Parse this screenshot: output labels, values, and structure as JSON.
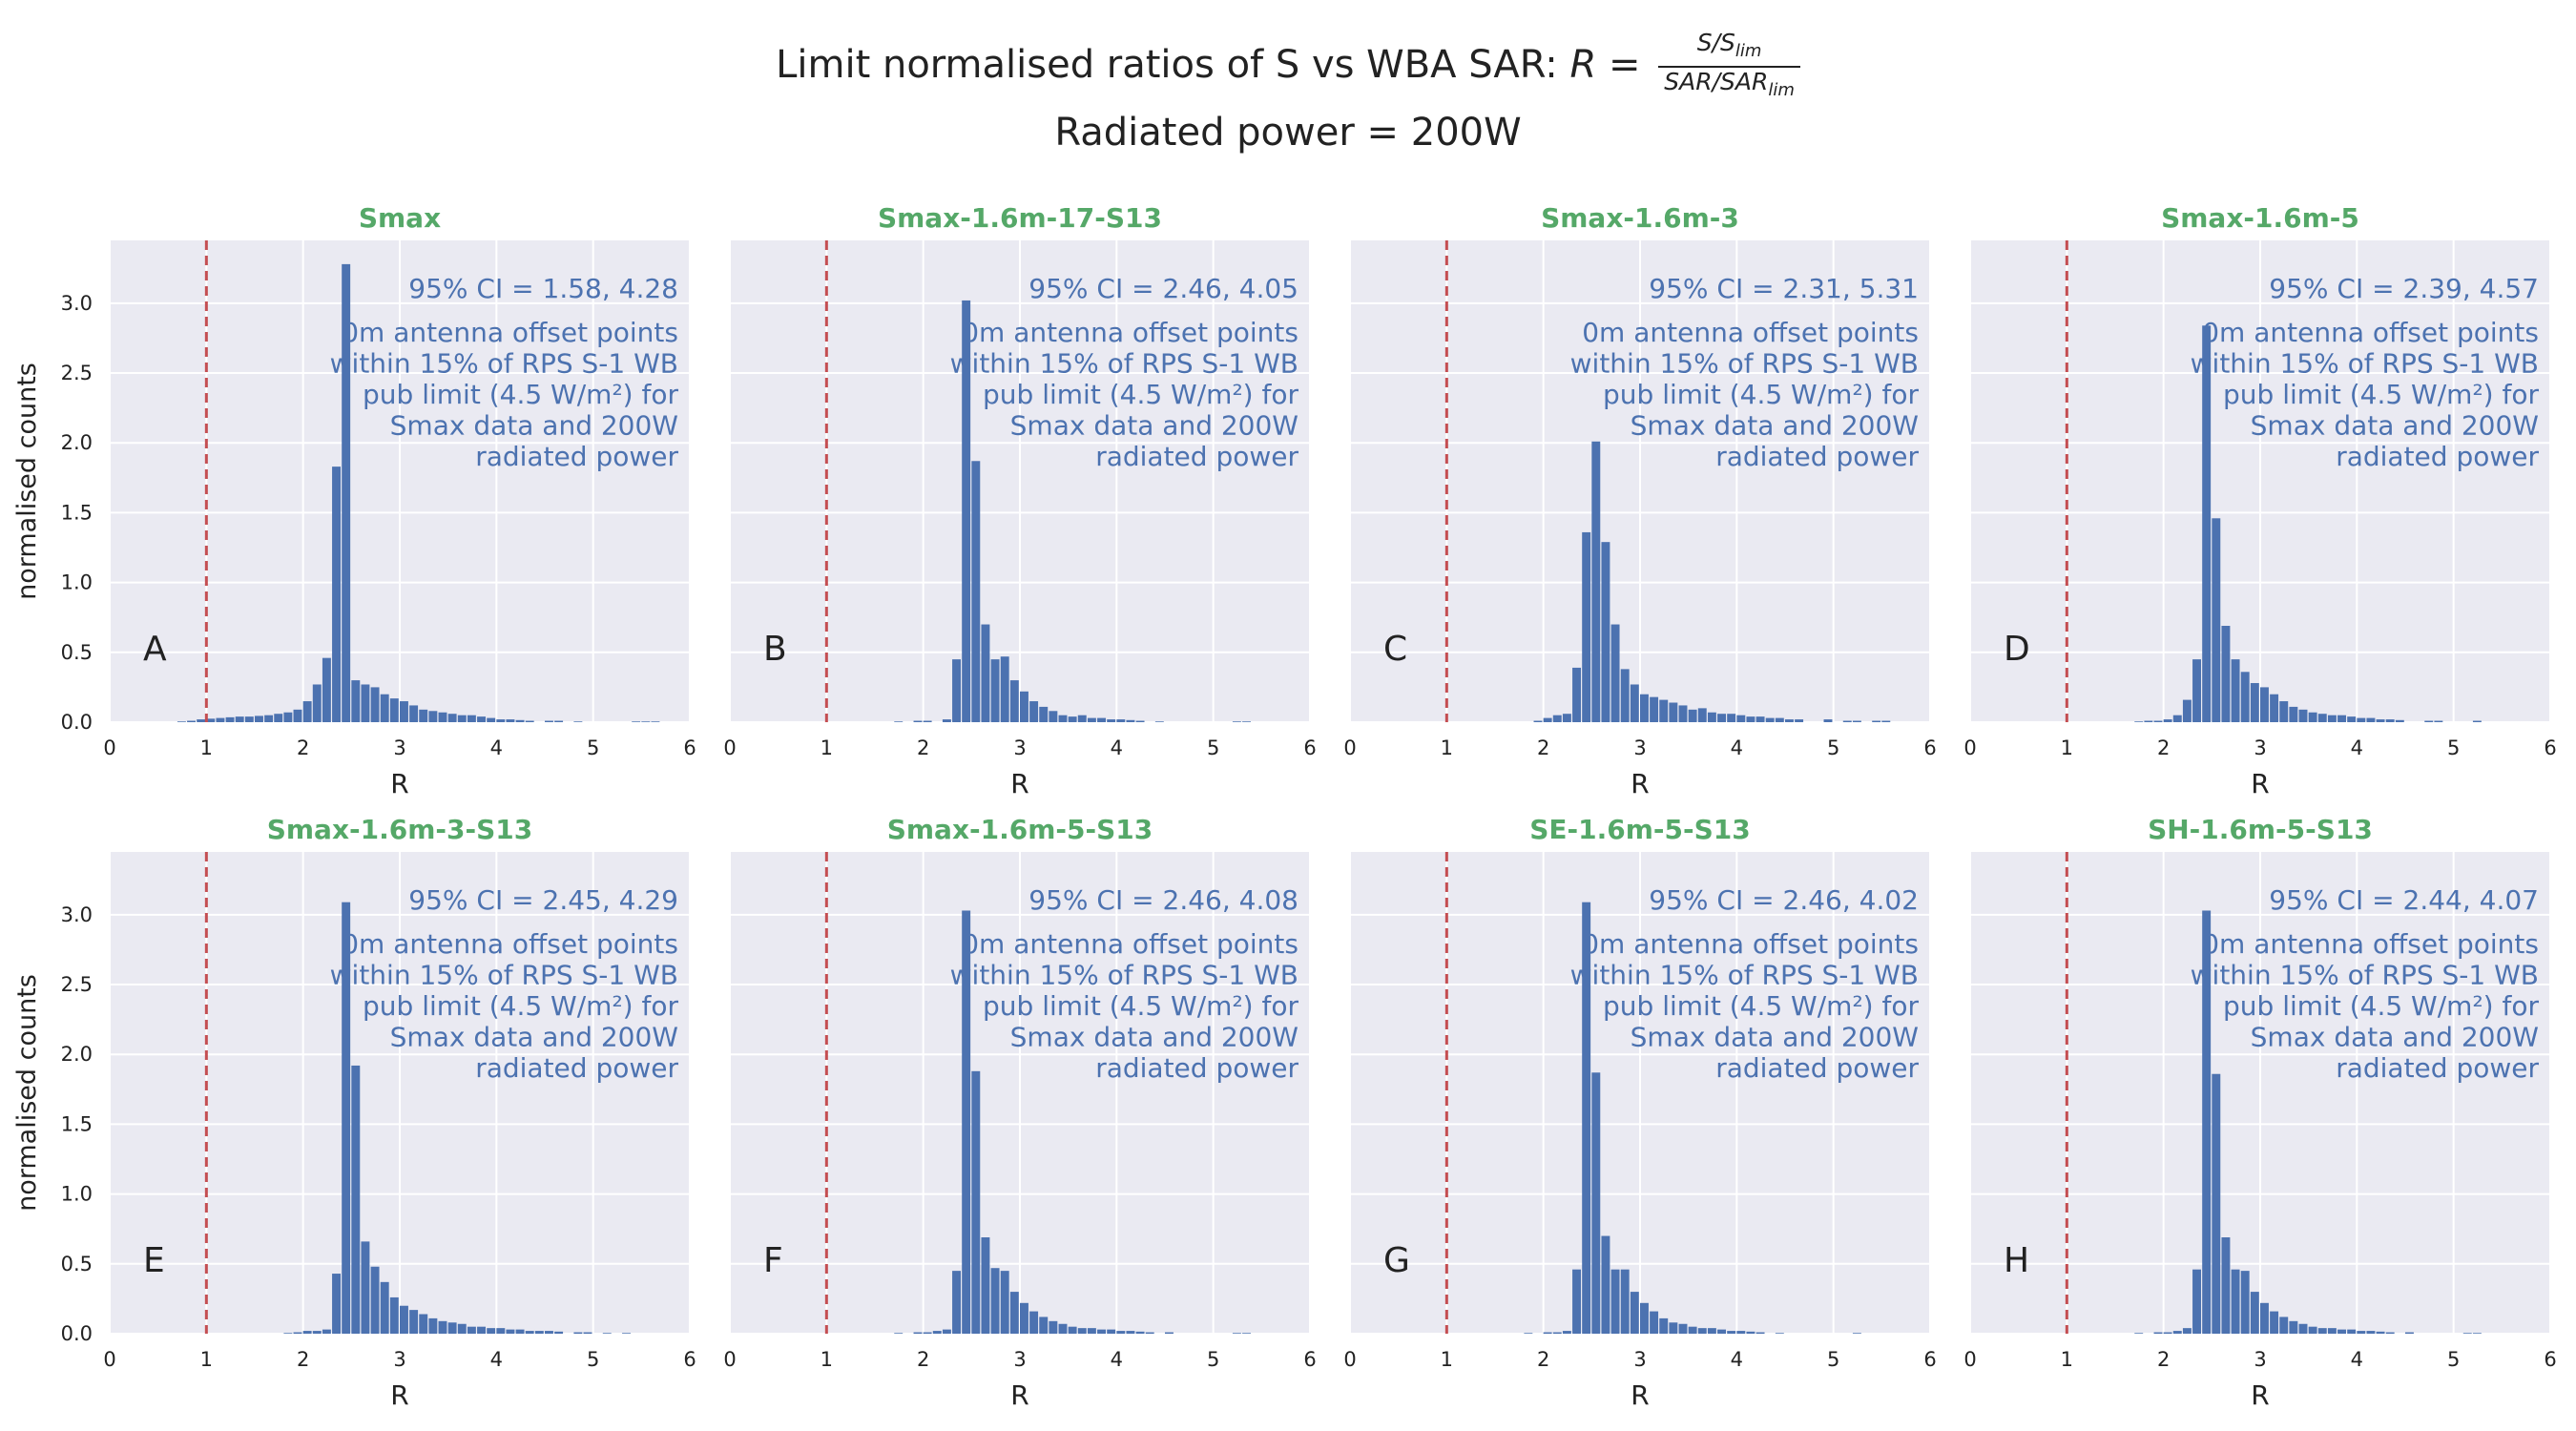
{
  "figure": {
    "title_prefix": "Limit normalised ratios of S vs WBA SAR:",
    "title_lhs": "R =",
    "title_frac_num": "S/S",
    "title_frac_num_sub": "lim",
    "title_frac_den": "SAR/SAR",
    "title_frac_den_sub": "lim",
    "subtitle": "Radiated power = 200W"
  },
  "colors": {
    "bar": "#4c72b0",
    "title_green": "#55a868",
    "annotation_blue": "#4c72b0",
    "limit_line": "#c44e52",
    "axes_bg": "#eaeaf2",
    "grid": "#ffffff"
  },
  "chart_data": [
    {
      "type": "bar",
      "panel_letter": "A",
      "title": "Smax",
      "xlabel": "R",
      "ylabel": "normalised counts",
      "xlim": [
        0,
        6
      ],
      "ylim": [
        0,
        3.45
      ],
      "xticks": [
        "0",
        "1",
        "2",
        "3",
        "4",
        "5",
        "6"
      ],
      "yticks": [
        "0.0",
        "0.5",
        "1.0",
        "1.5",
        "2.0",
        "2.5",
        "3.0"
      ],
      "bin_width": 0.1,
      "x_start": 0.7,
      "limit_line_x": 1.0,
      "values": [
        0.005,
        0.01,
        0.02,
        0.025,
        0.03,
        0.035,
        0.04,
        0.04,
        0.045,
        0.05,
        0.06,
        0.07,
        0.09,
        0.15,
        0.27,
        0.46,
        1.83,
        3.28,
        0.3,
        0.27,
        0.25,
        0.2,
        0.17,
        0.15,
        0.12,
        0.09,
        0.08,
        0.07,
        0.06,
        0.05,
        0.05,
        0.04,
        0.03,
        0.02,
        0.02,
        0.015,
        0.01,
        0,
        0.01,
        0.01,
        0,
        0.005,
        0,
        0,
        0,
        0,
        0,
        0.005,
        0.005,
        0.005
      ],
      "annotation_ci": "95% CI = 1.58, 4.28",
      "annotation_lines": [
        "0m antenna offset points",
        "within 15% of RPS S-1 WB",
        "pub limit (4.5 W/m²) for",
        "Smax data and 200W",
        "radiated power"
      ]
    },
    {
      "type": "bar",
      "panel_letter": "B",
      "title": "Smax-1.6m-17-S13",
      "xlabel": "R",
      "ylabel": "",
      "xlim": [
        0,
        6
      ],
      "ylim": [
        0,
        3.45
      ],
      "xticks": [
        "0",
        "1",
        "2",
        "3",
        "4",
        "5",
        "6"
      ],
      "yticks": [],
      "bin_width": 0.1,
      "x_start": 1.7,
      "limit_line_x": 1.0,
      "values": [
        0.005,
        0,
        0.01,
        0.01,
        0,
        0.02,
        0.45,
        3.02,
        1.87,
        0.7,
        0.45,
        0.47,
        0.3,
        0.22,
        0.15,
        0.11,
        0.08,
        0.05,
        0.04,
        0.05,
        0.03,
        0.03,
        0.02,
        0.02,
        0.015,
        0.01,
        0,
        0.005,
        0,
        0,
        0,
        0,
        0,
        0,
        0,
        0.005,
        0.005,
        0,
        0,
        0,
        0,
        0
      ],
      "annotation_ci": "95% CI = 2.46, 4.05",
      "annotation_lines": [
        "0m antenna offset points",
        "within 15% of RPS S-1 WB",
        "pub limit (4.5 W/m²) for",
        "Smax data and 200W",
        "radiated power"
      ]
    },
    {
      "type": "bar",
      "panel_letter": "C",
      "title": "Smax-1.6m-3",
      "xlabel": "R",
      "ylabel": "",
      "xlim": [
        0,
        6
      ],
      "ylim": [
        0,
        3.45
      ],
      "xticks": [
        "0",
        "1",
        "2",
        "3",
        "4",
        "5",
        "6"
      ],
      "yticks": [],
      "bin_width": 0.1,
      "x_start": 1.9,
      "limit_line_x": 1.0,
      "values": [
        0.01,
        0.03,
        0.05,
        0.06,
        0.39,
        1.36,
        2.01,
        1.29,
        0.7,
        0.38,
        0.27,
        0.2,
        0.18,
        0.16,
        0.14,
        0.12,
        0.09,
        0.1,
        0.07,
        0.06,
        0.06,
        0.05,
        0.04,
        0.04,
        0.03,
        0.03,
        0.02,
        0.02,
        0,
        0,
        0.02,
        0,
        0.01,
        0.01,
        0,
        0.01,
        0.01,
        0,
        0,
        0
      ],
      "annotation_ci": "95% CI = 2.31, 5.31",
      "annotation_lines": [
        "0m antenna offset points",
        "within 15% of RPS S-1 WB",
        "pub limit (4.5 W/m²) for",
        "Smax data and 200W",
        "radiated power"
      ]
    },
    {
      "type": "bar",
      "panel_letter": "D",
      "title": "Smax-1.6m-5",
      "xlabel": "R",
      "ylabel": "",
      "xlim": [
        0,
        6
      ],
      "ylim": [
        0,
        3.45
      ],
      "xticks": [
        "0",
        "1",
        "2",
        "3",
        "4",
        "5",
        "6"
      ],
      "yticks": [],
      "bin_width": 0.1,
      "x_start": 1.7,
      "limit_line_x": 1.0,
      "values": [
        0.005,
        0.01,
        0.01,
        0.02,
        0.05,
        0.16,
        0.45,
        2.84,
        1.46,
        0.69,
        0.45,
        0.36,
        0.28,
        0.25,
        0.2,
        0.15,
        0.11,
        0.09,
        0.07,
        0.06,
        0.05,
        0.05,
        0.04,
        0.03,
        0.03,
        0.02,
        0.02,
        0.015,
        0,
        0,
        0.01,
        0.01,
        0,
        0,
        0,
        0.01,
        0,
        0,
        0,
        0,
        0
      ],
      "annotation_ci": "95% CI = 2.39, 4.57",
      "annotation_lines": [
        "0m antenna offset points",
        "within 15% of RPS S-1 WB",
        "pub limit (4.5 W/m²) for",
        "Smax data and 200W",
        "radiated power"
      ]
    },
    {
      "type": "bar",
      "panel_letter": "E",
      "title": "Smax-1.6m-3-S13",
      "xlabel": "R",
      "ylabel": "normalised counts",
      "xlim": [
        0,
        6
      ],
      "ylim": [
        0,
        3.45
      ],
      "xticks": [
        "0",
        "1",
        "2",
        "3",
        "4",
        "5",
        "6"
      ],
      "yticks": [
        "0.0",
        "0.5",
        "1.0",
        "1.5",
        "2.0",
        "2.5",
        "3.0"
      ],
      "bin_width": 0.1,
      "x_start": 1.8,
      "limit_line_x": 1.0,
      "values": [
        0.005,
        0.01,
        0.02,
        0.02,
        0.03,
        0.43,
        3.09,
        1.92,
        0.66,
        0.48,
        0.37,
        0.26,
        0.2,
        0.17,
        0.14,
        0.11,
        0.09,
        0.08,
        0.07,
        0.05,
        0.05,
        0.04,
        0.04,
        0.03,
        0.03,
        0.02,
        0.02,
        0.02,
        0.015,
        0,
        0.01,
        0.01,
        0,
        0.005,
        0,
        0.005,
        0,
        0,
        0,
        0
      ],
      "annotation_ci": "95% CI = 2.45, 4.29",
      "annotation_lines": [
        "0m antenna offset points",
        "within 15% of RPS S-1 WB",
        "pub limit (4.5 W/m²) for",
        "Smax data and 200W",
        "radiated power"
      ]
    },
    {
      "type": "bar",
      "panel_letter": "F",
      "title": "Smax-1.6m-5-S13",
      "xlabel": "R",
      "ylabel": "",
      "xlim": [
        0,
        6
      ],
      "ylim": [
        0,
        3.45
      ],
      "xticks": [
        "0",
        "1",
        "2",
        "3",
        "4",
        "5",
        "6"
      ],
      "yticks": [],
      "bin_width": 0.1,
      "x_start": 1.7,
      "limit_line_x": 1.0,
      "values": [
        0.005,
        0,
        0.01,
        0.01,
        0.02,
        0.03,
        0.45,
        3.03,
        1.88,
        0.69,
        0.47,
        0.45,
        0.3,
        0.22,
        0.16,
        0.12,
        0.09,
        0.07,
        0.05,
        0.04,
        0.04,
        0.03,
        0.03,
        0.02,
        0.02,
        0.015,
        0.01,
        0,
        0.01,
        0,
        0,
        0,
        0,
        0,
        0,
        0.005,
        0.005,
        0,
        0,
        0,
        0
      ],
      "annotation_ci": "95% CI = 2.46, 4.08",
      "annotation_lines": [
        "0m antenna offset points",
        "within 15% of RPS S-1 WB",
        "pub limit (4.5 W/m²) for",
        "Smax data and 200W",
        "radiated power"
      ]
    },
    {
      "type": "bar",
      "panel_letter": "G",
      "title": "SE-1.6m-5-S13",
      "xlabel": "R",
      "ylabel": "",
      "xlim": [
        0,
        6
      ],
      "ylim": [
        0,
        3.45
      ],
      "xticks": [
        "0",
        "1",
        "2",
        "3",
        "4",
        "5",
        "6"
      ],
      "yticks": [],
      "bin_width": 0.1,
      "x_start": 1.8,
      "limit_line_x": 1.0,
      "values": [
        0.005,
        0,
        0.01,
        0.01,
        0.02,
        0.46,
        3.09,
        1.87,
        0.7,
        0.46,
        0.46,
        0.3,
        0.22,
        0.16,
        0.11,
        0.08,
        0.07,
        0.05,
        0.04,
        0.04,
        0.03,
        0.02,
        0.02,
        0.015,
        0.01,
        0,
        0.005,
        0,
        0,
        0,
        0,
        0,
        0,
        0,
        0.005,
        0,
        0,
        0,
        0,
        0
      ],
      "annotation_ci": "95% CI = 2.46, 4.02",
      "annotation_lines": [
        "0m antenna offset points",
        "within 15% of RPS S-1 WB",
        "pub limit (4.5 W/m²) for",
        "Smax data and 200W",
        "radiated power"
      ]
    },
    {
      "type": "bar",
      "panel_letter": "H",
      "title": "SH-1.6m-5-S13",
      "xlabel": "R",
      "ylabel": "",
      "xlim": [
        0,
        6
      ],
      "ylim": [
        0,
        3.45
      ],
      "xticks": [
        "0",
        "1",
        "2",
        "3",
        "4",
        "5",
        "6"
      ],
      "yticks": [],
      "bin_width": 0.1,
      "x_start": 1.7,
      "limit_line_x": 1.0,
      "values": [
        0.005,
        0,
        0.01,
        0.01,
        0.02,
        0.04,
        0.46,
        3.03,
        1.86,
        0.69,
        0.46,
        0.45,
        0.3,
        0.22,
        0.16,
        0.12,
        0.09,
        0.07,
        0.05,
        0.04,
        0.04,
        0.03,
        0.03,
        0.02,
        0.02,
        0.015,
        0.01,
        0,
        0.01,
        0,
        0,
        0,
        0,
        0,
        0.005,
        0.005,
        0,
        0,
        0,
        0,
        0
      ],
      "annotation_ci": "95% CI = 2.44, 4.07",
      "annotation_lines": [
        "0m antenna offset points",
        "within 15% of RPS S-1 WB",
        "pub limit (4.5 W/m²) for",
        "Smax data and 200W",
        "radiated power"
      ]
    }
  ]
}
